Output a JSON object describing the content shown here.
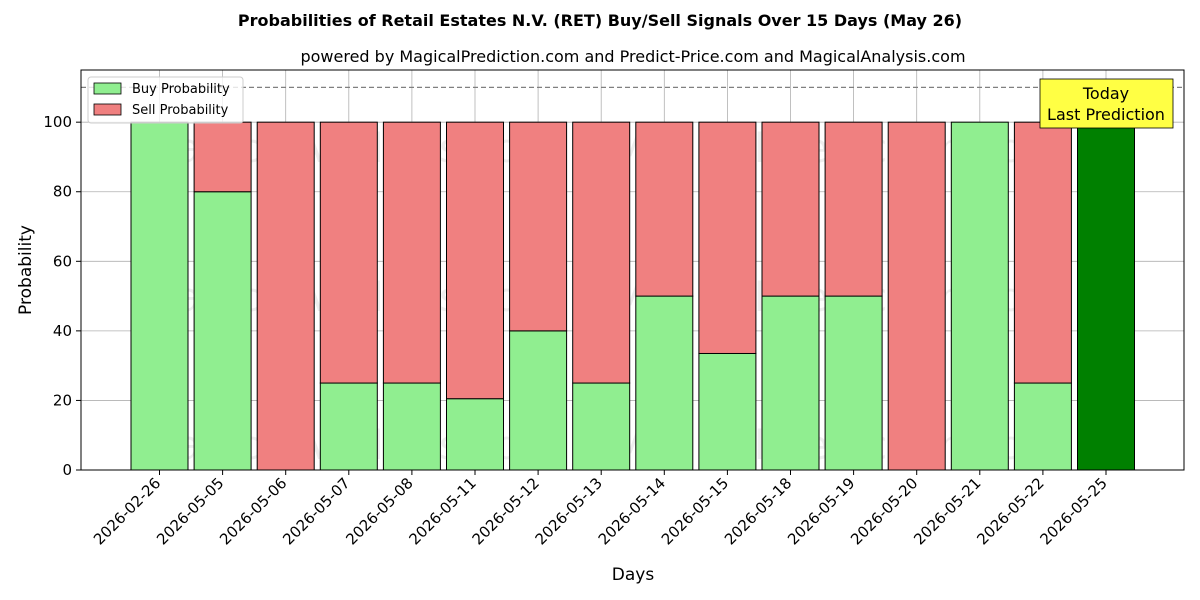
{
  "chart_data": {
    "type": "bar",
    "stacked": true,
    "title": "Probabilities of Retail Estates N.V. (RET) Buy/Sell Signals Over 15 Days (May 26)",
    "subtitle": "powered by MagicalPrediction.com and Predict-Price.com and MagicalAnalysis.com",
    "xlabel": "Days",
    "ylabel": "Probability",
    "ylim": [
      0,
      115
    ],
    "yticks": [
      0,
      20,
      40,
      60,
      80,
      100
    ],
    "reference_line": 110,
    "grid": true,
    "legend_position": "top-left",
    "categories": [
      "2026-02-26",
      "2026-05-05",
      "2026-05-06",
      "2026-05-07",
      "2026-05-08",
      "2026-05-11",
      "2026-05-12",
      "2026-05-13",
      "2026-05-14",
      "2026-05-15",
      "2026-05-18",
      "2026-05-19",
      "2026-05-20",
      "2026-05-21",
      "2026-05-22",
      "2026-05-25"
    ],
    "series": [
      {
        "name": "Buy Probability",
        "color": "#90ee90",
        "values": [
          100,
          80,
          0,
          25,
          25,
          20.5,
          40,
          25,
          50,
          33.5,
          50,
          50,
          0,
          100,
          25,
          100
        ]
      },
      {
        "name": "Sell Probability",
        "color": "#f08080",
        "values": [
          0,
          20,
          100,
          75,
          75,
          79.5,
          60,
          75,
          50,
          66.5,
          50,
          50,
          100,
          0,
          75,
          0
        ]
      }
    ],
    "highlight": {
      "category": "2026-05-25",
      "color": "#008000"
    },
    "annotation": {
      "lines": [
        "Today",
        "Last Prediction"
      ],
      "background": "#ffff44"
    },
    "watermarks": [
      "MagicalAnalysis.com",
      "MagicalPrediction.com"
    ]
  }
}
